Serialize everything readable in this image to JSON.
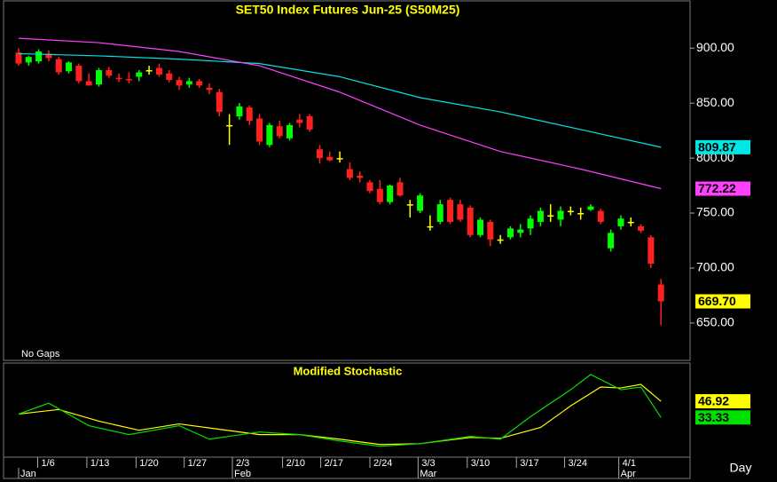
{
  "chart_data": {
    "type": "candlestick",
    "title": "SET50  Index  Futures  Jun-25  (S50M25)",
    "note": "No  Gaps",
    "period_label": "Day",
    "xlim": [
      -1.5,
      66.9
    ],
    "ylim": [
      616,
      943
    ],
    "yticks": [
      {
        "value": 900,
        "label": "900.00"
      },
      {
        "value": 850,
        "label": "850.00"
      },
      {
        "value": 800,
        "label": "800.00"
      },
      {
        "value": 750,
        "label": "750.00"
      },
      {
        "value": 700,
        "label": "700.00"
      },
      {
        "value": 650,
        "label": "650.00"
      }
    ],
    "xticks": [
      {
        "value": 1.9,
        "label": "1/6"
      },
      {
        "value": 6.8,
        "label": "1/13"
      },
      {
        "value": 11.7,
        "label": "1/20"
      },
      {
        "value": 16.5,
        "label": "1/27"
      },
      {
        "value": 21.3,
        "label": "2/3"
      },
      {
        "value": 26.3,
        "label": "2/10"
      },
      {
        "value": 30.1,
        "label": "2/17"
      },
      {
        "value": 35,
        "label": "2/24"
      },
      {
        "value": 39.8,
        "label": "3/3"
      },
      {
        "value": 44.7,
        "label": "3/10"
      },
      {
        "value": 49.6,
        "label": "3/17"
      },
      {
        "value": 54.4,
        "label": "3/24"
      },
      {
        "value": 59.8,
        "label": "4/1"
      }
    ],
    "month_ticks": [
      {
        "value": 0,
        "label": "Jan"
      },
      {
        "value": 21.3,
        "label": "Feb"
      },
      {
        "value": 39.8,
        "label": "Mar"
      },
      {
        "value": 59.8,
        "label": "Apr"
      }
    ],
    "up_color": "#00ff00",
    "down_color": "#ff2020",
    "flat_color": "#ffff00",
    "candles": {
      "open": [
        896,
        887,
        888,
        895,
        890,
        879,
        884,
        870,
        867,
        880,
        873,
        872,
        874,
        880,
        882,
        877,
        871,
        867,
        870,
        864,
        860,
        830,
        838,
        846,
        836,
        812,
        829,
        818,
        835,
        838,
        808,
        801,
        800,
        790,
        784,
        778,
        772,
        760,
        778,
        758,
        752,
        738,
        742,
        762,
        758,
        755,
        730,
        742,
        726,
        728,
        732,
        736,
        742,
        748,
        744,
        752,
        750,
        753,
        752,
        718,
        738,
        742,
        738,
        728,
        685
      ],
      "high": [
        900,
        893,
        899,
        898,
        892,
        888,
        886,
        877,
        882,
        883,
        877,
        878,
        880,
        884,
        886,
        880,
        874,
        873,
        872,
        868,
        863,
        840,
        850,
        848,
        840,
        832,
        834,
        832,
        840,
        840,
        812,
        806,
        806,
        796,
        788,
        780,
        780,
        776,
        782,
        762,
        768,
        748,
        762,
        764,
        762,
        757,
        746,
        744,
        730,
        738,
        740,
        748,
        755,
        758,
        756,
        756,
        755,
        758,
        754,
        735,
        748,
        746,
        740,
        730,
        690
      ],
      "low": [
        884,
        884,
        886,
        888,
        876,
        877,
        868,
        866,
        865,
        873,
        869,
        868,
        870,
        876,
        874,
        869,
        862,
        864,
        864,
        858,
        838,
        812,
        835,
        830,
        812,
        810,
        818,
        816,
        828,
        824,
        795,
        797,
        796,
        780,
        778,
        768,
        758,
        758,
        765,
        746,
        750,
        734,
        740,
        740,
        742,
        728,
        728,
        720,
        722,
        726,
        728,
        730,
        738,
        742,
        738,
        748,
        744,
        752,
        740,
        715,
        735,
        738,
        732,
        700,
        648
      ],
      "close": [
        886,
        892,
        897,
        891,
        878,
        887,
        870,
        866,
        880,
        875,
        872,
        871,
        878,
        880,
        876,
        871,
        866,
        870,
        866,
        862,
        842,
        830,
        847,
        834,
        815,
        830,
        820,
        830,
        832,
        826,
        800,
        798,
        800,
        782,
        782,
        770,
        760,
        775,
        766,
        758,
        766,
        738,
        758,
        742,
        744,
        730,
        744,
        726,
        726,
        736,
        735,
        745,
        752,
        748,
        752,
        752,
        750,
        756,
        742,
        732,
        745,
        742,
        734,
        704,
        669.7
      ],
      "color": "#ffff00",
      "last_label": "669.70"
    },
    "series": [
      {
        "name": "MA cyan",
        "color": "#00e5e5",
        "x": [
          0,
          8,
          16,
          24,
          32,
          40,
          48,
          56,
          64
        ],
        "values": [
          895,
          893,
          890,
          886,
          874,
          855,
          842,
          826,
          809.87
        ],
        "last_label": "809.87"
      },
      {
        "name": "MA magenta",
        "color": "#ff40ff",
        "x": [
          0,
          8,
          16,
          24,
          32,
          40,
          48,
          56,
          64
        ],
        "values": [
          909,
          905,
          897,
          884,
          860,
          830,
          806,
          790,
          772.22
        ],
        "last_label": "772.22"
      }
    ],
    "stochastic": {
      "title": "Modified  Stochastic",
      "ylim": [
        0,
        79
      ],
      "series": [
        {
          "color": "#ffff00",
          "x": [
            0,
            4,
            8,
            12,
            16,
            20,
            24,
            28,
            32,
            36,
            40,
            45,
            48,
            52,
            55,
            58,
            60,
            62,
            64
          ],
          "values": [
            36.2,
            40,
            30.2,
            22.6,
            27.9,
            23.4,
            18.9,
            18.9,
            15.1,
            10.6,
            11.3,
            16.6,
            15.8,
            24.9,
            43,
            58.9,
            58.1,
            61.1,
            46.92
          ],
          "last_label": "46.92"
        },
        {
          "color": "#00e000",
          "x": [
            0,
            3,
            7,
            11,
            16,
            19,
            24,
            28,
            32,
            36,
            40,
            45,
            48,
            51,
            55,
            57,
            60,
            62,
            64
          ],
          "values": [
            36.2,
            45.3,
            26.4,
            18.9,
            26.4,
            15.1,
            21.1,
            18.9,
            13.6,
            9.1,
            11.3,
            17.4,
            15.1,
            34,
            56.6,
            69.4,
            56.6,
            58.9,
            33.33
          ],
          "last_label": "33.33"
        }
      ]
    }
  }
}
